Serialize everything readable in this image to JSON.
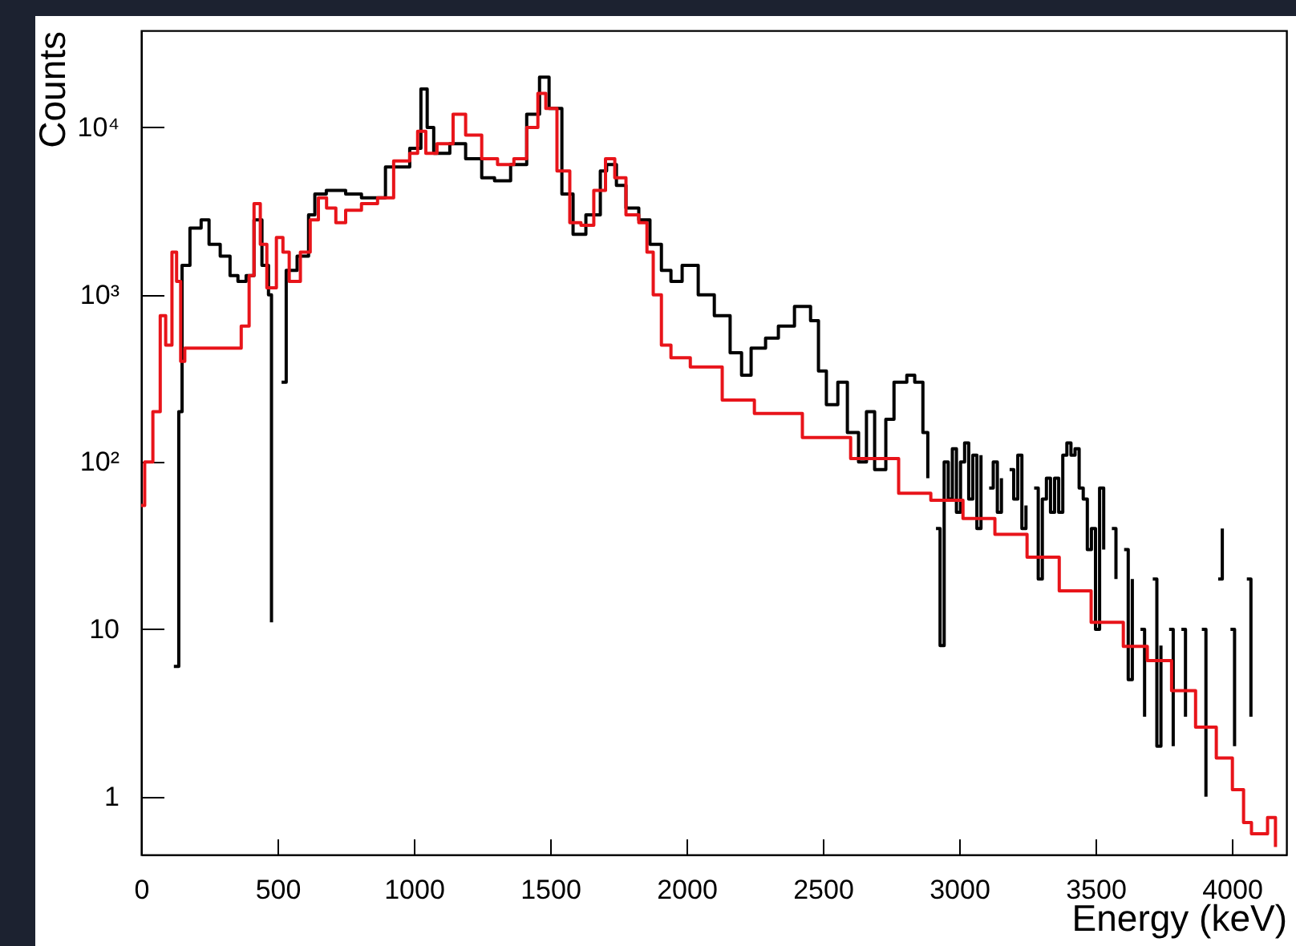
{
  "chart_data": {
    "type": "step",
    "xlabel": "Energy (keV)",
    "ylabel": "Counts",
    "log": "y",
    "grid": false,
    "xlim": [
      0,
      4200
    ],
    "xticks": [
      0,
      500,
      1000,
      1500,
      2000,
      2500,
      3000,
      3500,
      4000
    ],
    "ylim": [
      0.45,
      38000
    ],
    "yticks": [
      1,
      10,
      {
        "value": 100,
        "label": "10²"
      },
      {
        "value": 1000,
        "label": "10³"
      },
      {
        "value": 10000,
        "label": "10⁴"
      }
    ],
    "series": [
      {
        "color": "#000000",
        "x": [
          120,
          138,
          150,
          179,
          220,
          249,
          290,
          326,
          355,
          385,
          414,
          443,
          467,
          478,
          490,
          515,
          532,
          572,
          614,
          637,
          679,
          750,
          808,
          896,
          985,
          1026,
          1049,
          1073,
          1132,
          1190,
          1249,
          1296,
          1355,
          1414,
          1461,
          1496,
          1543,
          1584,
          1631,
          1684,
          1707,
          1743,
          1778,
          1825,
          1866,
          1908,
          1943,
          1984,
          2043,
          2102,
          2160,
          2202,
          2237,
          2290,
          2337,
          2396,
          2455,
          2484,
          2513,
          2555,
          2590,
          2631,
          2660,
          2690,
          2731,
          2761,
          2808,
          2837,
          2867,
          2885,
          2900,
          2915,
          2930,
          2945,
          2960,
          2975,
          2990,
          3005,
          3020,
          3035,
          3050,
          3065,
          3080,
          3095,
          3110,
          3125,
          3140,
          3155,
          3170,
          3185,
          3200,
          3215,
          3230,
          3245,
          3260,
          3275,
          3290,
          3305,
          3320,
          3335,
          3350,
          3365,
          3380,
          3395,
          3410,
          3425,
          3440,
          3455,
          3470,
          3485,
          3500,
          3515,
          3530,
          3545,
          3560,
          3575,
          3590,
          3605,
          3620,
          3635,
          3650,
          3665,
          3680,
          3695,
          3710,
          3725,
          3740,
          3755,
          3770,
          3785,
          3800,
          3815,
          3830,
          3845,
          3890,
          3905,
          3920,
          3950,
          3965,
          3980,
          3995,
          4010,
          4025,
          4055,
          4070
        ],
        "values": [
          6,
          200,
          1500,
          2500,
          2800,
          2000,
          1700,
          1300,
          1200,
          1300,
          2800,
          1500,
          1000,
          11,
          null,
          300,
          1400,
          1700,
          3000,
          4000,
          4200,
          4000,
          3800,
          5800,
          7500,
          17000,
          10000,
          7000,
          8000,
          6500,
          5000,
          4800,
          6000,
          12000,
          20000,
          13000,
          4000,
          2300,
          3000,
          5500,
          6000,
          4500,
          3300,
          2800,
          2000,
          1400,
          1200,
          1500,
          1000,
          750,
          450,
          330,
          480,
          550,
          650,
          850,
          700,
          350,
          220,
          300,
          150,
          100,
          200,
          90,
          180,
          300,
          330,
          300,
          150,
          80,
          null,
          40,
          8,
          100,
          60,
          120,
          50,
          100,
          130,
          60,
          110,
          40,
          110,
          null,
          70,
          100,
          50,
          80,
          null,
          90,
          60,
          110,
          40,
          55,
          null,
          70,
          20,
          60,
          80,
          50,
          80,
          50,
          110,
          130,
          110,
          120,
          70,
          60,
          30,
          40,
          10,
          70,
          30,
          null,
          40,
          20,
          null,
          30,
          5,
          20,
          null,
          10,
          3,
          null,
          20,
          2,
          8,
          null,
          10,
          2,
          null,
          10,
          3,
          null,
          10,
          1,
          null,
          20,
          40,
          null,
          10,
          2,
          null,
          20,
          3
        ]
      },
      {
        "color": "#e8141a",
        "x": [
          0,
          13,
          43,
          70,
          90,
          113,
          130,
          145,
          160,
          300,
          367,
          396,
          414,
          437,
          461,
          496,
          520,
          543,
          584,
          620,
          650,
          680,
          714,
          750,
          808,
          867,
          926,
          985,
          1014,
          1044,
          1085,
          1144,
          1190,
          1249,
          1307,
          1367,
          1414,
          1455,
          1484,
          1525,
          1572,
          1613,
          1660,
          1703,
          1737,
          1778,
          1825,
          1855,
          1878,
          1908,
          1943,
          2014,
          2131,
          2249,
          2425,
          2602,
          2778,
          2896,
          3014,
          3131,
          3249,
          3367,
          3484,
          3602,
          3690,
          3779,
          3867,
          3943,
          4002,
          4043,
          4072,
          4102,
          4131,
          4160
        ],
        "values": [
          55,
          100,
          200,
          750,
          500,
          1800,
          1200,
          400,
          480,
          480,
          650,
          1300,
          3500,
          2000,
          1100,
          2200,
          1800,
          1200,
          1800,
          2800,
          3800,
          3300,
          2700,
          3200,
          3500,
          3800,
          6300,
          7000,
          9500,
          7000,
          8000,
          12000,
          9000,
          6500,
          6000,
          6500,
          10000,
          16000,
          13000,
          5500,
          2700,
          2600,
          4200,
          6500,
          5000,
          3000,
          2700,
          1800,
          1000,
          500,
          420,
          370,
          235,
          195,
          140,
          105,
          65,
          59,
          46,
          37,
          27,
          17,
          11,
          7.9,
          6.5,
          4.3,
          2.6,
          1.7,
          1.1,
          0.7,
          0.6,
          0.6,
          0.75,
          0.5
        ]
      }
    ]
  }
}
